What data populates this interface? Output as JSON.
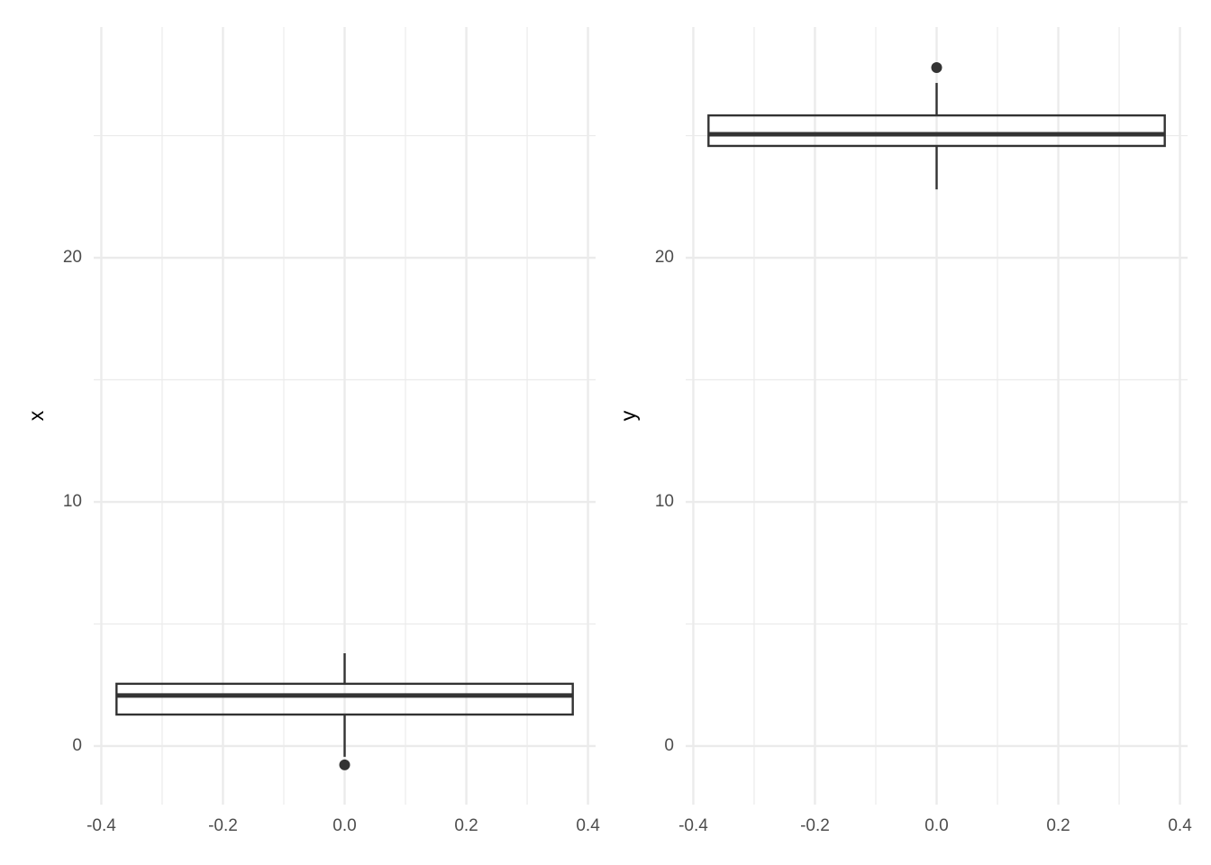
{
  "chart_data": [
    {
      "type": "box",
      "y_label": "x",
      "x": [
        0
      ],
      "xlim": [
        -0.4125,
        0.4125
      ],
      "ylim": [
        -2.4,
        29.45
      ],
      "xticks": [
        -0.4,
        -0.2,
        {
          "value": 0,
          "label": "0.0"
        },
        0.2,
        0.4
      ],
      "yticks": [
        0,
        10,
        20
      ],
      "x_minor_grid": [
        -0.3,
        -0.1,
        0.1,
        0.3
      ],
      "y_minor_grid": [
        5,
        15,
        25
      ],
      "grid": true,
      "color": "#333333",
      "box": {
        "q1": 1.29,
        "median": 2.07,
        "q3": 2.55,
        "whisker_low": -0.44,
        "whisker_high": 3.8,
        "outliers": [
          -0.77
        ]
      }
    },
    {
      "type": "box",
      "y_label": "y",
      "x": [
        0
      ],
      "xlim": [
        -0.4125,
        0.4125
      ],
      "ylim": [
        -2.4,
        29.45
      ],
      "xticks": [
        -0.4,
        -0.2,
        {
          "value": 0,
          "label": "0.0"
        },
        0.2,
        0.4
      ],
      "yticks": [
        0,
        10,
        20
      ],
      "x_minor_grid": [
        -0.3,
        -0.1,
        0.1,
        0.3
      ],
      "y_minor_grid": [
        5,
        15,
        25
      ],
      "grid": true,
      "color": "#333333",
      "box": {
        "q1": 24.58,
        "median": 25.06,
        "q3": 25.83,
        "whisker_low": 22.8,
        "whisker_high": 27.16,
        "outliers": [
          27.79
        ]
      }
    }
  ]
}
